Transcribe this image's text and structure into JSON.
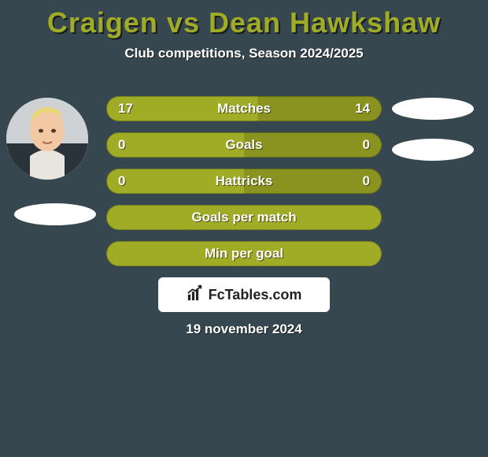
{
  "title": "Craigen vs Dean Hawkshaw",
  "subtitle": "Club competitions, Season 2024/2025",
  "brand": "FcTables.com",
  "date": "19 november 2024",
  "title_color": "#a0ac26",
  "background_color": "#37474f",
  "row_border_color": "rgba(0,0,0,0.25)",
  "rows": [
    {
      "label": "Matches",
      "left": "17",
      "right": "14",
      "left_pct": 55,
      "left_color": "#a0ac26",
      "right_color": "#8a931f"
    },
    {
      "label": "Goals",
      "left": "0",
      "right": "0",
      "left_pct": 50,
      "left_color": "#a0ac26",
      "right_color": "#8a931f"
    },
    {
      "label": "Hattricks",
      "left": "0",
      "right": "0",
      "left_pct": 50,
      "left_color": "#a0ac26",
      "right_color": "#8a931f"
    },
    {
      "label": "Goals per match",
      "left": "",
      "right": "",
      "left_pct": 100,
      "left_color": "#a0ac26",
      "right_color": "#8a931f"
    },
    {
      "label": "Min per goal",
      "left": "",
      "right": "",
      "left_pct": 100,
      "left_color": "#a0ac26",
      "right_color": "#8a931f"
    }
  ]
}
